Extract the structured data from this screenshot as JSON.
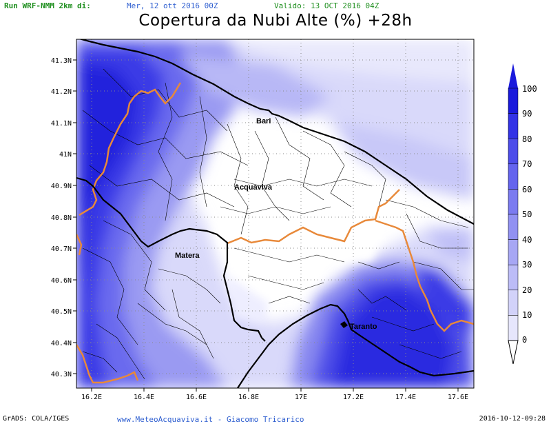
{
  "header": {
    "run": "Run WRF-NMM 2km di:",
    "run_date": "Mer, 12 ott 2016 00Z",
    "valid": "Valido: 13 OCT 2016 04Z",
    "title": "Copertura da Nubi Alte (%) +28h"
  },
  "map": {
    "lat_labels": [
      "41.3N",
      "41.2N",
      "41.1N",
      "41N",
      "40.9N",
      "40.8N",
      "40.7N",
      "40.6N",
      "40.5N",
      "40.4N",
      "40.3N"
    ],
    "lon_labels": [
      "16.2E",
      "16.4E",
      "16.6E",
      "16.8E",
      "17E",
      "17.2E",
      "17.4E",
      "17.6E"
    ],
    "cities": [
      {
        "name": "Bari"
      },
      {
        "name": "Acquaviva"
      },
      {
        "name": "Matera"
      },
      {
        "name": "Taranto"
      }
    ],
    "colors": {
      "ocean_boundary": "#000000",
      "region_border": "#e8893a",
      "municipal": "#000000"
    }
  },
  "legend": {
    "labels": [
      "100",
      "90",
      "80",
      "70",
      "60",
      "50",
      "40",
      "30",
      "20",
      "10",
      "0"
    ],
    "colors": [
      "#1a1adc",
      "#3333e6",
      "#4d4dea",
      "#6464ee",
      "#7b7bf0",
      "#9191f2",
      "#a7a7f4",
      "#bcbcf7",
      "#d2d2f9",
      "#e6e6fc",
      "#ffffff"
    ]
  },
  "footer": {
    "grads": "GrADS: COLA/IGES",
    "site": "www.MeteoAcquaviva.it - Giacomo Tricarico",
    "timestamp": "2016-10-12-09:28"
  }
}
